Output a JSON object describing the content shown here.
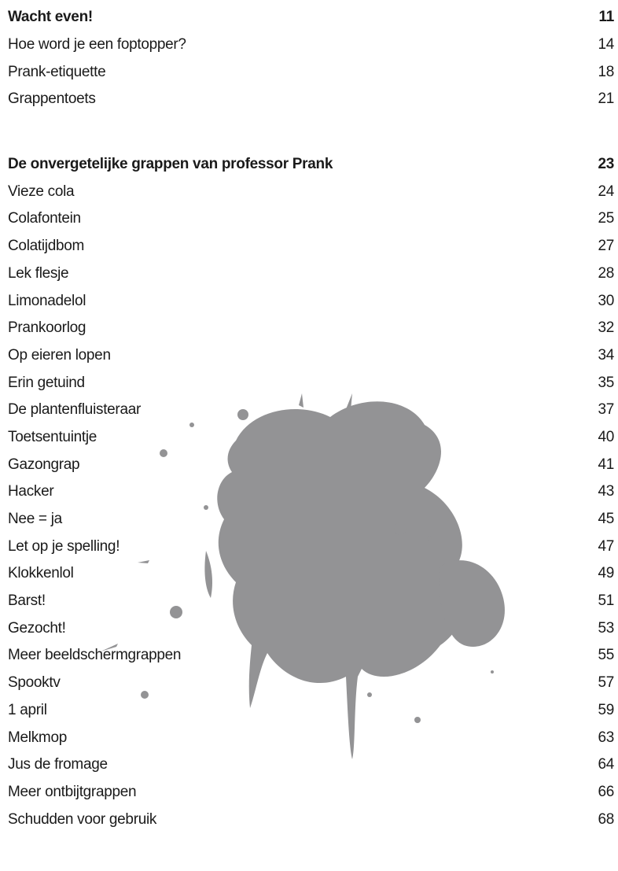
{
  "sections": [
    {
      "heading": {
        "title": "Wacht even!",
        "page": 11
      },
      "entries": [
        {
          "title": "Hoe word je een foptopper?",
          "page": 14
        },
        {
          "title": "Prank-etiquette",
          "page": 18
        },
        {
          "title": "Grappentoets",
          "page": 21
        }
      ]
    },
    {
      "heading": {
        "title": "De onvergetelijke grappen van professor Prank",
        "page": 23
      },
      "entries": [
        {
          "title": "Vieze cola",
          "page": 24
        },
        {
          "title": "Colafontein",
          "page": 25
        },
        {
          "title": "Colatijdbom",
          "page": 27
        },
        {
          "title": "Lek flesje",
          "page": 28
        },
        {
          "title": "Limonadelol",
          "page": 30
        },
        {
          "title": "Prankoorlog",
          "page": 32
        },
        {
          "title": "Op eieren lopen",
          "page": 34
        },
        {
          "title": "Erin getuind",
          "page": 35
        },
        {
          "title": "De plantenfluisteraar",
          "page": 37
        },
        {
          "title": "Toetsentuintje",
          "page": 40
        },
        {
          "title": "Gazongrap",
          "page": 41
        },
        {
          "title": "Hacker",
          "page": 43
        },
        {
          "title": "Nee = ja",
          "page": 45
        },
        {
          "title": "Let op je spelling!",
          "page": 47
        },
        {
          "title": "Klokkenlol",
          "page": 49
        },
        {
          "title": "Barst!",
          "page": 51
        },
        {
          "title": "Gezocht!",
          "page": 53
        },
        {
          "title": "Meer beeldschermgrappen",
          "page": 55
        },
        {
          "title": "Spooktv",
          "page": 57
        },
        {
          "title": "1 april",
          "page": 59
        },
        {
          "title": "Melkmop",
          "page": 63
        },
        {
          "title": "Jus de fromage",
          "page": 64
        },
        {
          "title": "Meer ontbijtgrappen",
          "page": 66
        },
        {
          "title": "Schudden voor gebruik",
          "page": 68
        }
      ]
    }
  ]
}
